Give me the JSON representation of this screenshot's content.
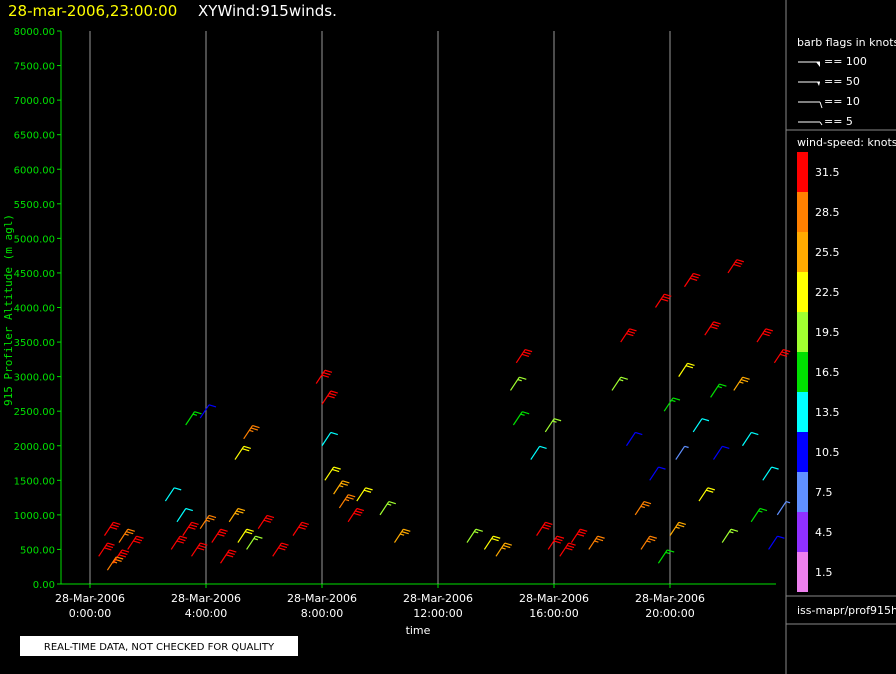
{
  "chart_data": {
    "type": "windbarb",
    "title": "28-mar-2006,23:00:00",
    "subtitle": "XYWind:915winds.",
    "ylabel": "915 Profiler Altitude (m agl)",
    "xlabel": "time",
    "note": "REAL-TIME DATA, NOT CHECKED FOR QUALITY",
    "source": "iss-mapr/prof915h",
    "xlim": [
      -1,
      24
    ],
    "ylim": [
      0,
      8000
    ],
    "xticks": [
      {
        "value": 0,
        "label": "28-Mar-2006 0:00:00"
      },
      {
        "value": 4,
        "label": "28-Mar-2006 4:00:00"
      },
      {
        "value": 8,
        "label": "28-Mar-2006 8:00:00"
      },
      {
        "value": 12,
        "label": "28-Mar-2006 12:00:00"
      },
      {
        "value": 16,
        "label": "28-Mar-2006 16:00:00"
      },
      {
        "value": 20,
        "label": "28-Mar-2006 20:00:00"
      }
    ],
    "yticks": [
      {
        "value": 0,
        "label": "0.00"
      },
      {
        "value": 500,
        "label": "500.00"
      },
      {
        "value": 1000,
        "label": "1000.00"
      },
      {
        "value": 1500,
        "label": "1500.00"
      },
      {
        "value": 2000,
        "label": "2000.00"
      },
      {
        "value": 2500,
        "label": "2500.00"
      },
      {
        "value": 3000,
        "label": "3000.00"
      },
      {
        "value": 3500,
        "label": "3500.00"
      },
      {
        "value": 4000,
        "label": "4000.00"
      },
      {
        "value": 4500,
        "label": "4500.00"
      },
      {
        "value": 5000,
        "label": "5000.00"
      },
      {
        "value": 5500,
        "label": "5500.00"
      },
      {
        "value": 6000,
        "label": "6000.00"
      },
      {
        "value": 6500,
        "label": "6500.00"
      },
      {
        "value": 7000,
        "label": "7000.00"
      },
      {
        "value": 7500,
        "label": "7500.00"
      },
      {
        "value": 8000,
        "label": "8000.00"
      }
    ],
    "flag_legend": {
      "title": "barb flags in knots",
      "items": [
        "== 100",
        "== 50",
        "== 10",
        "== 5"
      ]
    },
    "speed_legend": {
      "title": "wind-speed: knots",
      "levels": [
        31.5,
        28.5,
        25.5,
        22.5,
        19.5,
        16.5,
        13.5,
        10.5,
        7.5,
        4.5,
        1.5
      ],
      "colors": [
        "#ff0000",
        "#ff8000",
        "#ffaa00",
        "#ffff00",
        "#a0ff30",
        "#00e000",
        "#00ffff",
        "#0000ff",
        "#6090ff",
        "#9030ff",
        "#ee80ee"
      ]
    },
    "barbs": {
      "x": [
        0.3,
        0.5,
        0.8,
        1.0,
        1.3,
        0.6,
        2.8,
        3.2,
        3.5,
        3.8,
        4.2,
        4.5,
        4.8,
        5.1,
        5.4,
        5.8,
        6.3,
        2.6,
        3.0,
        3.3,
        3.8,
        5.3,
        5.0,
        7.8,
        8.0,
        8.0,
        8.1,
        8.4,
        8.6,
        8.9,
        9.2,
        10.0,
        10.5,
        7.0,
        13.0,
        13.6,
        14.0,
        14.7,
        14.5,
        14.6,
        15.2,
        15.7,
        15.8,
        16.2,
        16.6,
        15.4,
        17.2,
        18.0,
        18.3,
        18.5,
        18.8,
        19.0,
        19.3,
        19.5,
        19.8,
        20.0,
        20.3,
        20.5,
        20.8,
        21.0,
        21.2,
        21.5,
        21.8,
        22.0,
        22.2,
        22.5,
        22.8,
        23.0,
        23.2,
        23.4,
        23.6,
        23.7,
        19.6,
        20.2,
        21.4
      ],
      "y": [
        400,
        700,
        300,
        600,
        500,
        200,
        500,
        700,
        400,
        800,
        600,
        300,
        900,
        600,
        500,
        800,
        400,
        1200,
        900,
        2300,
        2400,
        2100,
        1800,
        2900,
        2600,
        2000,
        1500,
        1300,
        1100,
        900,
        1200,
        1000,
        600,
        700,
        600,
        500,
        400,
        3200,
        2800,
        2300,
        1800,
        2200,
        500,
        400,
        600,
        700,
        500,
        2800,
        3500,
        2000,
        1000,
        500,
        1500,
        4000,
        2500,
        700,
        3000,
        4300,
        2200,
        1200,
        3600,
        1800,
        600,
        4500,
        2800,
        2000,
        900,
        3500,
        1500,
        500,
        3200,
        1000,
        300,
        1800,
        2700
      ],
      "speed": [
        31,
        30,
        31,
        29,
        31,
        28,
        31,
        30,
        31,
        29,
        31,
        30,
        26,
        22,
        19,
        31,
        31,
        13,
        12,
        15,
        11,
        28,
        22,
        31,
        31,
        13,
        22,
        25,
        29,
        31,
        22,
        19,
        26,
        31,
        19,
        22,
        25,
        31,
        19,
        16,
        13,
        19,
        31,
        31,
        30,
        31,
        28,
        19,
        31,
        11,
        29,
        28,
        10,
        31,
        16,
        26,
        22,
        31,
        13,
        22,
        31,
        10,
        19,
        31,
        25,
        14,
        16,
        30,
        12,
        10,
        31,
        7,
        16,
        8,
        17
      ]
    }
  }
}
